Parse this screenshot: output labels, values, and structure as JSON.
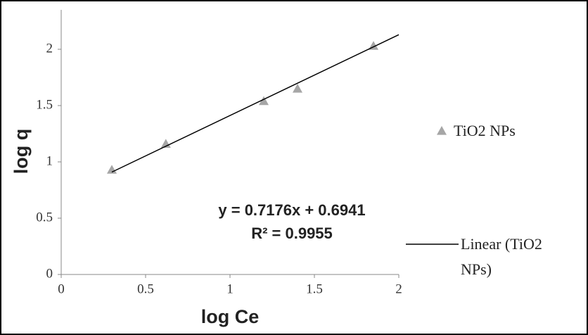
{
  "chart_data": {
    "type": "scatter",
    "x_label": "log Ce",
    "y_label": "log q",
    "xlim": [
      0,
      2
    ],
    "xticks": [
      0,
      0.5,
      1,
      1.5,
      2
    ],
    "ylim": [
      0,
      2.35
    ],
    "yticks": [
      0,
      0.5,
      1,
      1.5,
      2
    ],
    "grid": false,
    "annotations": [
      "y = 0.7176x + 0.6941",
      "R² = 0.9955"
    ],
    "series": [
      {
        "name": "TiO2 NPs",
        "mode": "markers",
        "color": "#a6a6a6",
        "x": [
          0.3,
          0.62,
          1.2,
          1.4,
          1.85
        ],
        "values": [
          0.93,
          1.16,
          1.54,
          1.65,
          2.03
        ]
      },
      {
        "name": "Linear (TiO2 NPs)",
        "mode": "line",
        "color": "#000000",
        "x": [
          0.3,
          2
        ],
        "values": [
          0.9094,
          2.1293
        ]
      }
    ]
  }
}
